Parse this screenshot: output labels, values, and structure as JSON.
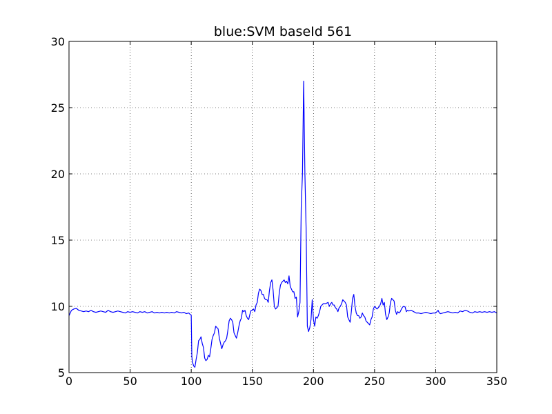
{
  "chart_data": {
    "type": "line",
    "title": "blue:SVM baseId 561",
    "xlabel": "",
    "ylabel": "",
    "xlim": [
      0,
      350
    ],
    "ylim": [
      5,
      30
    ],
    "xticks": [
      0,
      50,
      100,
      150,
      200,
      250,
      300,
      350
    ],
    "yticks": [
      5,
      10,
      15,
      20,
      25,
      30
    ],
    "grid": true,
    "line_color": "#0000ff",
    "series": [
      {
        "points": [
          [
            0,
            9.3
          ],
          [
            2,
            9.7
          ],
          [
            4,
            9.8
          ],
          [
            6,
            9.85
          ],
          [
            8,
            9.7
          ],
          [
            10,
            9.65
          ],
          [
            12,
            9.6
          ],
          [
            14,
            9.65
          ],
          [
            16,
            9.6
          ],
          [
            18,
            9.7
          ],
          [
            20,
            9.6
          ],
          [
            22,
            9.55
          ],
          [
            24,
            9.6
          ],
          [
            26,
            9.65
          ],
          [
            28,
            9.6
          ],
          [
            30,
            9.55
          ],
          [
            32,
            9.7
          ],
          [
            34,
            9.6
          ],
          [
            36,
            9.55
          ],
          [
            38,
            9.6
          ],
          [
            40,
            9.65
          ],
          [
            42,
            9.6
          ],
          [
            44,
            9.55
          ],
          [
            46,
            9.5
          ],
          [
            48,
            9.6
          ],
          [
            50,
            9.55
          ],
          [
            52,
            9.6
          ],
          [
            54,
            9.55
          ],
          [
            56,
            9.5
          ],
          [
            58,
            9.6
          ],
          [
            60,
            9.55
          ],
          [
            62,
            9.6
          ],
          [
            64,
            9.5
          ],
          [
            66,
            9.55
          ],
          [
            68,
            9.6
          ],
          [
            70,
            9.5
          ],
          [
            72,
            9.55
          ],
          [
            74,
            9.5
          ],
          [
            76,
            9.55
          ],
          [
            78,
            9.5
          ],
          [
            80,
            9.55
          ],
          [
            82,
            9.5
          ],
          [
            84,
            9.55
          ],
          [
            86,
            9.5
          ],
          [
            88,
            9.6
          ],
          [
            90,
            9.55
          ],
          [
            92,
            9.5
          ],
          [
            94,
            9.55
          ],
          [
            96,
            9.45
          ],
          [
            98,
            9.5
          ],
          [
            99,
            9.4
          ],
          [
            100,
            9.35
          ],
          [
            100.5,
            6.2
          ],
          [
            101,
            5.8
          ],
          [
            102,
            5.5
          ],
          [
            103,
            5.4
          ],
          [
            104,
            6.0
          ],
          [
            105,
            6.5
          ],
          [
            106,
            7.4
          ],
          [
            107,
            7.5
          ],
          [
            108,
            7.7
          ],
          [
            109,
            7.2
          ],
          [
            110,
            6.9
          ],
          [
            111,
            6.1
          ],
          [
            112,
            5.9
          ],
          [
            113,
            6.0
          ],
          [
            114,
            6.3
          ],
          [
            115,
            6.2
          ],
          [
            116,
            6.8
          ],
          [
            117,
            7.5
          ],
          [
            118,
            7.8
          ],
          [
            119,
            8.0
          ],
          [
            120,
            8.5
          ],
          [
            121,
            8.4
          ],
          [
            122,
            8.3
          ],
          [
            123,
            7.6
          ],
          [
            124,
            7.2
          ],
          [
            125,
            6.8
          ],
          [
            126,
            7.1
          ],
          [
            127,
            7.3
          ],
          [
            128,
            7.4
          ],
          [
            129,
            7.6
          ],
          [
            130,
            8.2
          ],
          [
            131,
            8.9
          ],
          [
            132,
            9.1
          ],
          [
            133,
            9.0
          ],
          [
            134,
            8.8
          ],
          [
            135,
            8.0
          ],
          [
            136,
            7.8
          ],
          [
            137,
            7.6
          ],
          [
            138,
            8.0
          ],
          [
            139,
            8.5
          ],
          [
            140,
            8.9
          ],
          [
            141,
            9.1
          ],
          [
            142,
            9.7
          ],
          [
            143,
            9.6
          ],
          [
            144,
            9.7
          ],
          [
            145,
            9.3
          ],
          [
            146,
            9.1
          ],
          [
            147,
            9.0
          ],
          [
            148,
            9.4
          ],
          [
            149,
            9.7
          ],
          [
            150,
            9.7
          ],
          [
            151,
            9.8
          ],
          [
            152,
            9.6
          ],
          [
            153,
            10.1
          ],
          [
            154,
            10.3
          ],
          [
            155,
            11.0
          ],
          [
            156,
            11.3
          ],
          [
            157,
            11.2
          ],
          [
            158,
            10.9
          ],
          [
            159,
            10.9
          ],
          [
            160,
            10.6
          ],
          [
            161,
            10.5
          ],
          [
            162,
            10.5
          ],
          [
            163,
            10.3
          ],
          [
            164,
            11.2
          ],
          [
            165,
            11.8
          ],
          [
            166,
            12.0
          ],
          [
            167,
            11.2
          ],
          [
            168,
            10.0
          ],
          [
            169,
            9.8
          ],
          [
            170,
            9.9
          ],
          [
            171,
            10.0
          ],
          [
            172,
            11.0
          ],
          [
            173,
            11.6
          ],
          [
            174,
            11.8
          ],
          [
            175,
            11.9
          ],
          [
            176,
            12.0
          ],
          [
            177,
            11.8
          ],
          [
            178,
            11.9
          ],
          [
            179,
            11.7
          ],
          [
            180,
            12.3
          ],
          [
            181,
            11.5
          ],
          [
            182,
            11.3
          ],
          [
            183,
            11.1
          ],
          [
            184,
            11.1
          ],
          [
            185,
            10.6
          ],
          [
            186,
            10.7
          ],
          [
            187,
            9.2
          ],
          [
            188,
            9.6
          ],
          [
            189,
            10.3
          ],
          [
            190,
            17.5
          ],
          [
            191,
            20.0
          ],
          [
            192,
            27.0
          ],
          [
            193,
            20.0
          ],
          [
            194,
            15.8
          ],
          [
            195,
            8.5
          ],
          [
            196,
            8.1
          ],
          [
            197,
            8.4
          ],
          [
            198,
            9.0
          ],
          [
            199,
            10.5
          ],
          [
            200,
            9.0
          ],
          [
            201,
            8.5
          ],
          [
            202,
            9.2
          ],
          [
            203,
            9.1
          ],
          [
            204,
            9.3
          ],
          [
            205,
            9.6
          ],
          [
            206,
            10.0
          ],
          [
            207,
            10.1
          ],
          [
            208,
            10.2
          ],
          [
            209,
            10.2
          ],
          [
            210,
            10.2
          ],
          [
            211,
            10.25
          ],
          [
            212,
            10.3
          ],
          [
            213,
            10.0
          ],
          [
            214,
            10.2
          ],
          [
            215,
            10.3
          ],
          [
            216,
            10.1
          ],
          [
            217,
            10.1
          ],
          [
            218,
            9.9
          ],
          [
            219,
            9.8
          ],
          [
            220,
            9.6
          ],
          [
            221,
            9.9
          ],
          [
            222,
            10.0
          ],
          [
            223,
            10.2
          ],
          [
            224,
            10.5
          ],
          [
            225,
            10.4
          ],
          [
            226,
            10.3
          ],
          [
            227,
            10.1
          ],
          [
            228,
            9.2
          ],
          [
            229,
            9.0
          ],
          [
            230,
            8.8
          ],
          [
            231,
            9.6
          ],
          [
            232,
            10.6
          ],
          [
            233,
            10.9
          ],
          [
            234,
            10.0
          ],
          [
            235,
            9.5
          ],
          [
            236,
            9.3
          ],
          [
            237,
            9.3
          ],
          [
            238,
            9.1
          ],
          [
            239,
            9.2
          ],
          [
            240,
            9.5
          ],
          [
            241,
            9.3
          ],
          [
            242,
            9.2
          ],
          [
            243,
            8.9
          ],
          [
            244,
            8.8
          ],
          [
            245,
            8.7
          ],
          [
            246,
            8.6
          ],
          [
            247,
            9.0
          ],
          [
            248,
            9.2
          ],
          [
            249,
            9.8
          ],
          [
            250,
            10.0
          ],
          [
            251,
            9.9
          ],
          [
            252,
            9.8
          ],
          [
            253,
            9.9
          ],
          [
            254,
            10.0
          ],
          [
            255,
            10.2
          ],
          [
            256,
            10.6
          ],
          [
            257,
            10.1
          ],
          [
            258,
            10.3
          ],
          [
            259,
            9.4
          ],
          [
            260,
            9.0
          ],
          [
            261,
            9.2
          ],
          [
            262,
            9.5
          ],
          [
            263,
            10.3
          ],
          [
            264,
            10.6
          ],
          [
            265,
            10.5
          ],
          [
            266,
            10.4
          ],
          [
            267,
            9.7
          ],
          [
            268,
            9.4
          ],
          [
            269,
            9.6
          ],
          [
            270,
            9.5
          ],
          [
            271,
            9.6
          ],
          [
            272,
            9.8
          ],
          [
            273,
            9.95
          ],
          [
            274,
            10.0
          ],
          [
            275,
            9.95
          ],
          [
            276,
            9.6
          ],
          [
            277,
            9.7
          ],
          [
            278,
            9.65
          ],
          [
            280,
            9.7
          ],
          [
            282,
            9.6
          ],
          [
            284,
            9.5
          ],
          [
            286,
            9.5
          ],
          [
            288,
            9.45
          ],
          [
            290,
            9.5
          ],
          [
            292,
            9.55
          ],
          [
            294,
            9.5
          ],
          [
            296,
            9.45
          ],
          [
            298,
            9.5
          ],
          [
            300,
            9.5
          ],
          [
            302,
            9.7
          ],
          [
            303,
            9.5
          ],
          [
            304,
            9.45
          ],
          [
            306,
            9.5
          ],
          [
            308,
            9.55
          ],
          [
            310,
            9.6
          ],
          [
            312,
            9.55
          ],
          [
            314,
            9.5
          ],
          [
            316,
            9.55
          ],
          [
            318,
            9.5
          ],
          [
            320,
            9.65
          ],
          [
            322,
            9.6
          ],
          [
            324,
            9.7
          ],
          [
            326,
            9.65
          ],
          [
            328,
            9.55
          ],
          [
            330,
            9.5
          ],
          [
            332,
            9.6
          ],
          [
            334,
            9.55
          ],
          [
            336,
            9.6
          ],
          [
            338,
            9.55
          ],
          [
            340,
            9.6
          ],
          [
            342,
            9.55
          ],
          [
            344,
            9.6
          ],
          [
            346,
            9.55
          ],
          [
            348,
            9.6
          ],
          [
            350,
            9.5
          ]
        ]
      }
    ]
  }
}
